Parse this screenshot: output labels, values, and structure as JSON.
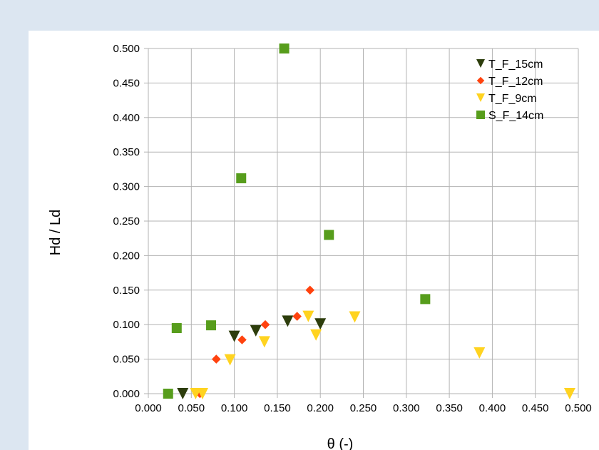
{
  "chart_data": {
    "type": "scatter",
    "xlabel": "θ (-)",
    "ylabel": "Hd / Ld",
    "xlim": [
      0,
      0.5
    ],
    "ylim": [
      0,
      0.5
    ],
    "x_ticks": [
      "0.000",
      "0.050",
      "0.100",
      "0.150",
      "0.200",
      "0.250",
      "0.300",
      "0.350",
      "0.400",
      "0.450",
      "0.500"
    ],
    "y_ticks": [
      "0.000",
      "0.050",
      "0.100",
      "0.150",
      "0.200",
      "0.250",
      "0.300",
      "0.350",
      "0.400",
      "0.450",
      "0.500"
    ],
    "grid": true,
    "legend_position": "top-right",
    "series": [
      {
        "name": "T_F_15cm",
        "marker": "triangle-down",
        "color": "#2d3d0c",
        "points": [
          [
            0.04,
            0.0
          ],
          [
            0.1,
            0.083
          ],
          [
            0.125,
            0.091
          ],
          [
            0.162,
            0.105
          ],
          [
            0.2,
            0.101
          ]
        ]
      },
      {
        "name": "T_F_12cm",
        "marker": "diamond",
        "color": "#ff420e",
        "points": [
          [
            0.06,
            0.0
          ],
          [
            0.079,
            0.05
          ],
          [
            0.109,
            0.078
          ],
          [
            0.136,
            0.1
          ],
          [
            0.173,
            0.112
          ],
          [
            0.188,
            0.15
          ]
        ]
      },
      {
        "name": "T_F_9cm",
        "marker": "triangle-down",
        "color": "#ffd320",
        "points": [
          [
            0.055,
            0.0
          ],
          [
            0.063,
            0.0
          ],
          [
            0.095,
            0.049
          ],
          [
            0.135,
            0.075
          ],
          [
            0.186,
            0.112
          ],
          [
            0.195,
            0.085
          ],
          [
            0.24,
            0.111
          ],
          [
            0.385,
            0.059
          ],
          [
            0.49,
            0.0
          ]
        ]
      },
      {
        "name": "S_F_14cm",
        "marker": "square",
        "color": "#579d1c",
        "points": [
          [
            0.023,
            0.0
          ],
          [
            0.033,
            0.095
          ],
          [
            0.073,
            0.099
          ],
          [
            0.108,
            0.312
          ],
          [
            0.158,
            0.5
          ],
          [
            0.21,
            0.23
          ],
          [
            0.322,
            0.137
          ]
        ]
      }
    ]
  }
}
